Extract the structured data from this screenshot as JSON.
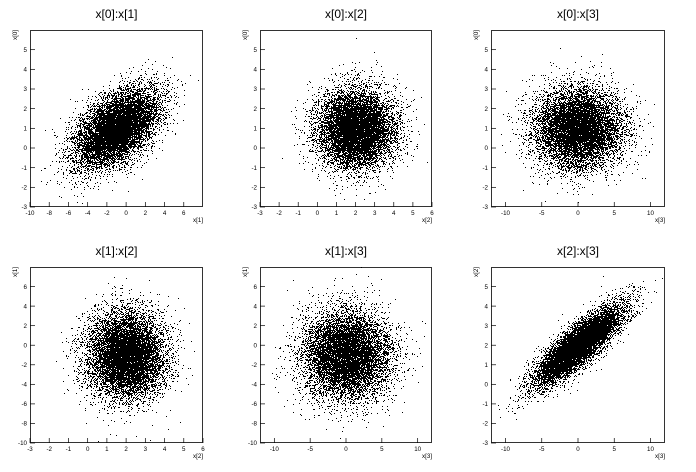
{
  "figure": {
    "background": "#ffffff",
    "marker_color": "#000000",
    "points_per_panel": 10000
  },
  "chart_data": [
    {
      "type": "scatter",
      "title": "x[0]:x[1]",
      "xlabel": "x[1]",
      "ylabel": "x[0]",
      "xlim": [
        -10,
        8
      ],
      "ylim": [
        -3,
        6
      ],
      "xticks": [
        -10,
        -8,
        -6,
        -4,
        -2,
        0,
        2,
        4,
        6
      ],
      "yticks": [
        -3,
        -2,
        -1,
        0,
        1,
        2,
        3,
        4,
        5
      ],
      "distribution": {
        "mean_x": -1.0,
        "mean_y": 1.0,
        "sd_x": 2.2,
        "sd_y": 1.0,
        "correlation": 0.5
      }
    },
    {
      "type": "scatter",
      "title": "x[0]:x[2]",
      "xlabel": "x[2]",
      "ylabel": "x[0]",
      "xlim": [
        -3,
        6
      ],
      "ylim": [
        -3,
        6
      ],
      "xticks": [
        -3,
        -2,
        -1,
        0,
        1,
        2,
        3,
        4,
        5,
        6
      ],
      "yticks": [
        -3,
        -2,
        -1,
        0,
        1,
        2,
        3,
        4,
        5
      ],
      "distribution": {
        "mean_x": 2.0,
        "mean_y": 1.0,
        "sd_x": 1.0,
        "sd_y": 1.0,
        "correlation": 0.0
      }
    },
    {
      "type": "scatter",
      "title": "x[0]:x[3]",
      "xlabel": "x[3]",
      "ylabel": "x[0]",
      "xlim": [
        -12,
        12
      ],
      "ylim": [
        -3,
        6
      ],
      "xticks": [
        -10,
        -5,
        0,
        5,
        10
      ],
      "yticks": [
        -3,
        -2,
        -1,
        0,
        1,
        2,
        3,
        4,
        5
      ],
      "distribution": {
        "mean_x": 0.0,
        "mean_y": 1.0,
        "sd_x": 3.0,
        "sd_y": 1.0,
        "correlation": 0.0
      }
    },
    {
      "type": "scatter",
      "title": "x[1]:x[2]",
      "xlabel": "x[2]",
      "ylabel": "x[1]",
      "xlim": [
        -3,
        6
      ],
      "ylim": [
        -10,
        8
      ],
      "xticks": [
        -3,
        -2,
        -1,
        0,
        1,
        2,
        3,
        4,
        5,
        6
      ],
      "yticks": [
        -10,
        -8,
        -6,
        -4,
        -2,
        0,
        2,
        4,
        6
      ],
      "distribution": {
        "mean_x": 2.0,
        "mean_y": -1.0,
        "sd_x": 1.0,
        "sd_y": 2.2,
        "correlation": 0.0
      }
    },
    {
      "type": "scatter",
      "title": "x[1]:x[3]",
      "xlabel": "x[3]",
      "ylabel": "x[1]",
      "xlim": [
        -12,
        12
      ],
      "ylim": [
        -10,
        8
      ],
      "xticks": [
        -10,
        -5,
        0,
        5,
        10
      ],
      "yticks": [
        -10,
        -8,
        -6,
        -4,
        -2,
        0,
        2,
        4,
        6
      ],
      "distribution": {
        "mean_x": 0.0,
        "mean_y": -1.0,
        "sd_x": 3.0,
        "sd_y": 2.2,
        "correlation": 0.0
      }
    },
    {
      "type": "scatter",
      "title": "x[2]:x[3]",
      "xlabel": "x[3]",
      "ylabel": "x[2]",
      "xlim": [
        -12,
        12
      ],
      "ylim": [
        -3,
        6
      ],
      "xticks": [
        -10,
        -5,
        0,
        5,
        10
      ],
      "yticks": [
        -3,
        -2,
        -1,
        0,
        1,
        2,
        3,
        4,
        5
      ],
      "distribution": {
        "mean_x": 0.0,
        "mean_y": 2.0,
        "sd_x": 3.0,
        "sd_y": 1.0,
        "correlation": 0.85
      }
    }
  ]
}
